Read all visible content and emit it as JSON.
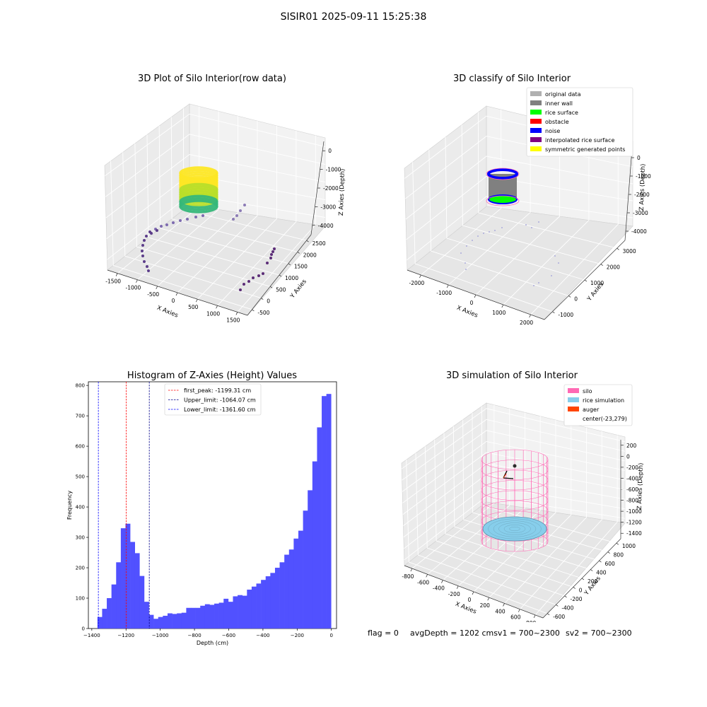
{
  "figure": {
    "suptitle": "SISIR01 2025-09-11 15:25:38",
    "footer": {
      "flag": "flag = 0",
      "avg_depth": "avgDepth = 1202 cmsv1 = 700~2300",
      "sv2": "sv2 = 700~2300"
    }
  },
  "chart_data": [
    {
      "type": "scatter",
      "subtype": "3d",
      "title": "3D Plot of Silo Interior(row data)",
      "xlabel": "X Axies",
      "ylabel": "Y Axies",
      "zlabel": "Z Axies (Depth)",
      "xticks": [
        "-1500",
        "-1000",
        "-500",
        "0",
        "500",
        "1000",
        "1500"
      ],
      "yticks": [
        "-500",
        "0",
        "500",
        "1000",
        "1500",
        "2000",
        "2500"
      ],
      "zticks": [
        "0",
        "-1000",
        "-2000",
        "-3000",
        "-4000"
      ],
      "colormap": [
        "#440154",
        "#31688e",
        "#35b779",
        "#fde725"
      ]
    },
    {
      "type": "scatter",
      "subtype": "3d",
      "title": "3D classify of Silo Interior",
      "xlabel": "X Axies",
      "ylabel": "Y Axies",
      "zlabel": "Z Axies (Depth)",
      "xticks": [
        "-2000",
        "-1000",
        "0",
        "1000",
        "2000"
      ],
      "yticks": [
        "-1000",
        "0",
        "1000",
        "2000",
        "3000"
      ],
      "zticks": [
        "0",
        "-1000",
        "-2000",
        "-3000",
        "-4000"
      ],
      "legend": [
        {
          "label": "original data",
          "color": "#b0b0b0"
        },
        {
          "label": "inner wall",
          "color": "#808080"
        },
        {
          "label": "rice surface",
          "color": "#00ff00"
        },
        {
          "label": "obstacle",
          "color": "#ff0000"
        },
        {
          "label": "noise",
          "color": "#0000ff"
        },
        {
          "label": "interpolated rice surface",
          "color": "#800080"
        },
        {
          "label": "symmetric generated points",
          "color": "#ffff00"
        }
      ],
      "legend_position": "top-right"
    },
    {
      "type": "bar",
      "subtype": "histogram",
      "title": "Histogram of Z-Axies (Height) Values",
      "xlabel": "Depth (cm)",
      "ylabel": "Frequency",
      "xlim": [
        -1420,
        30
      ],
      "ylim": [
        0,
        812
      ],
      "xticks": [
        -1400,
        -1200,
        -1000,
        -800,
        -600,
        -400,
        -200,
        0
      ],
      "yticks": [
        0,
        100,
        200,
        300,
        400,
        500,
        600,
        700,
        800
      ],
      "bar_color": "#5151ff",
      "bin_start": -1367,
      "bin_width": 27.3,
      "values": [
        38,
        65,
        100,
        145,
        218,
        330,
        345,
        285,
        248,
        173,
        88,
        45,
        32,
        38,
        42,
        50,
        48,
        50,
        52,
        68,
        68,
        68,
        75,
        80,
        78,
        82,
        85,
        98,
        88,
        106,
        110,
        108,
        128,
        138,
        148,
        160,
        172,
        183,
        200,
        218,
        243,
        260,
        296,
        322,
        388,
        455,
        550,
        662,
        765,
        772
      ],
      "vlines": [
        {
          "x": -1199.31,
          "color": "#ff0000",
          "label": "first_peak: -1199.31 cm"
        },
        {
          "x": -1064.07,
          "color": "#00008b",
          "label": "Upper_limit: -1064.07 cm"
        },
        {
          "x": -1361.6,
          "color": "#0000ff",
          "label": "Lower_limit: -1361.60 cm"
        }
      ],
      "legend_position": "top-center"
    },
    {
      "type": "scatter",
      "subtype": "3d",
      "title": "3D simulation of Silo Interior",
      "xlabel": "X Axies",
      "ylabel": "Y Axies",
      "zlabel": "Z Axies (Depth)",
      "xticks": [
        "-800",
        "-600",
        "-400",
        "-200",
        "0",
        "200",
        "400",
        "600",
        "800"
      ],
      "yticks": [
        "-600",
        "-400",
        "-200",
        "0",
        "200",
        "400",
        "600",
        "800",
        "1000"
      ],
      "zticks": [
        "200",
        "0",
        "-200",
        "-400",
        "-600",
        "-800",
        "-1000",
        "-1200",
        "-1400"
      ],
      "legend": [
        {
          "label": "silo",
          "color": "#ff69b4"
        },
        {
          "label": "rice simulation",
          "color": "#87ceeb"
        },
        {
          "label": "auger",
          "color": "#ff4500"
        },
        {
          "label": "center(-23,279)",
          "color": ""
        }
      ],
      "legend_position": "top-right"
    }
  ]
}
